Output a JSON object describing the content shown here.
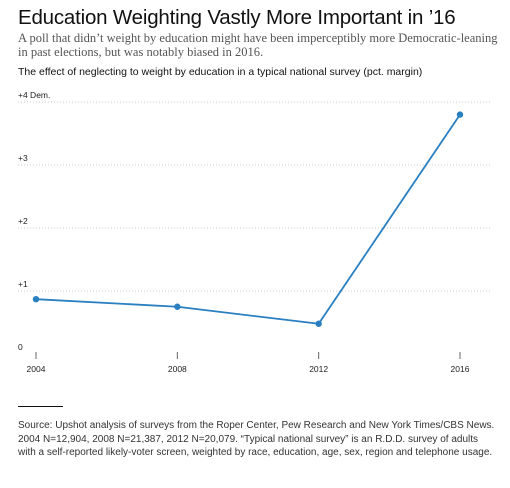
{
  "headline": "Education Weighting Vastly More Important in ’16",
  "subhead": "A poll that didn’t weight by education might have been imperceptibly more Democratic-leaning in past elections, but was notably biased in 2016.",
  "source": "Source: Upshot analysis of surveys from the Roper Center, Pew Research and New York Times/CBS News. 2004 N=12,904, 2008 N=21,387, 2012 N=20,079. “Typical national survey” is an R.D.D. survey of adults with a self-reported likely-voter screen, weighted by race, education, age, sex, region and telephone usage.",
  "chart_data": {
    "type": "line",
    "title": "The effect of neglecting to weight by education in a typical national survey (pct. margin)",
    "xlabel": "",
    "ylabel": "",
    "x": [
      2004,
      2008,
      2012,
      2016
    ],
    "series": [
      {
        "values": [
          0.87,
          0.75,
          0.48,
          3.8
        ]
      }
    ],
    "ylim": [
      0,
      4
    ],
    "xlim": [
      2004,
      2016
    ],
    "yticks": [
      {
        "value": 0,
        "label": "0"
      },
      {
        "value": 1,
        "label": "+1"
      },
      {
        "value": 2,
        "label": "+2"
      },
      {
        "value": 3,
        "label": "+3"
      },
      {
        "value": 4,
        "label": "+4 Dem."
      }
    ],
    "xticks": [
      {
        "value": 2004,
        "label": "2004"
      },
      {
        "value": 2008,
        "label": "2008"
      },
      {
        "value": 2012,
        "label": "2012"
      },
      {
        "value": 2016,
        "label": "2016"
      }
    ],
    "grid": true,
    "colors": {
      "line": "#2a7fc1",
      "grid": "#cccccc"
    }
  }
}
